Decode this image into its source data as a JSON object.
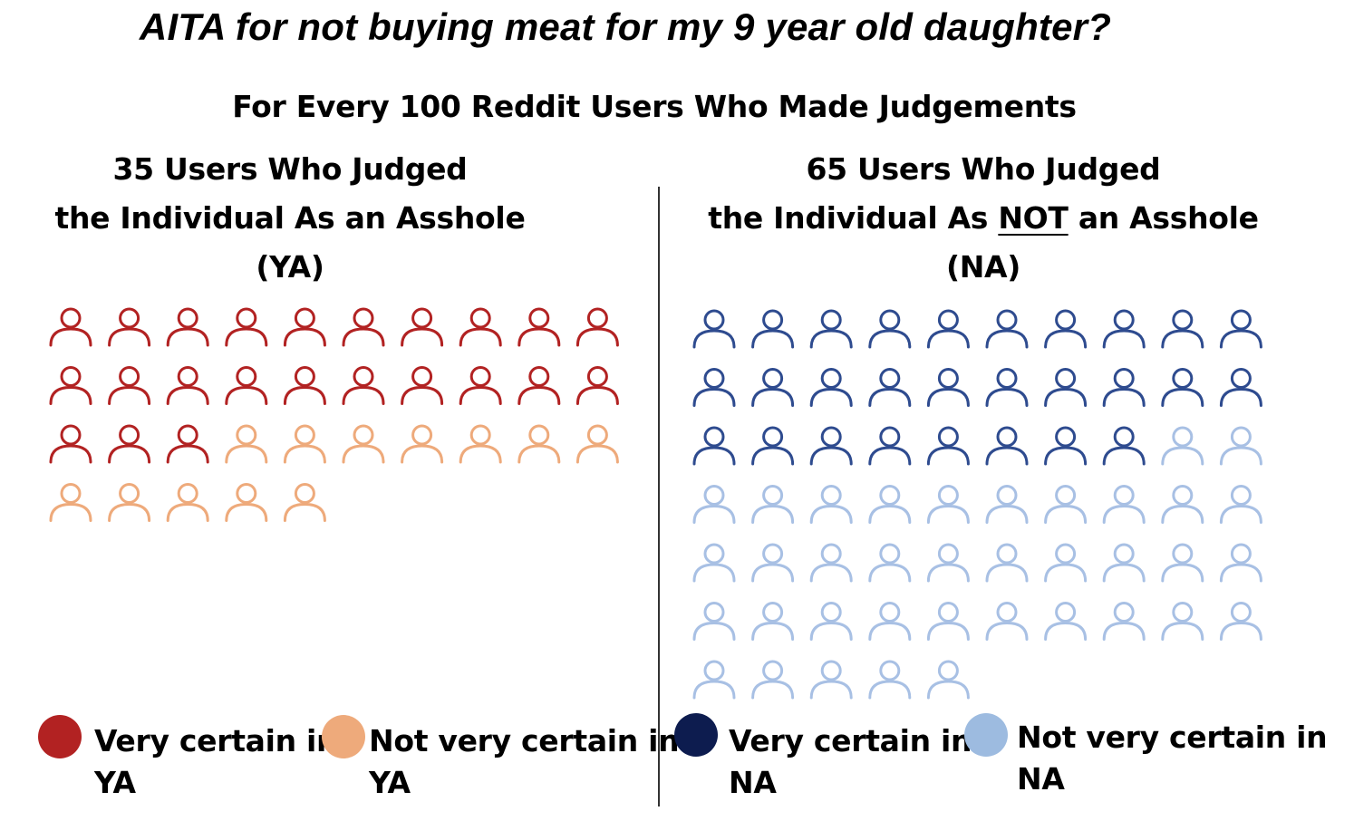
{
  "title": "AITA for not buying meat for my 9 year old daughter?",
  "subtitle": "For Every 100 Reddit Users Who Made Judgements",
  "panels": {
    "ya": {
      "line1": "35 Users Who Judged",
      "line2": "the Individual As an Asshole",
      "line3": "(YA)"
    },
    "na": {
      "line1": "65 Users Who Judged",
      "line2_pre": "the Individual As ",
      "line2_u": "NOT",
      "line2_post": " an Asshole",
      "line3": "(NA)"
    }
  },
  "legend": [
    {
      "text1": "Very certain in",
      "text2": "YA",
      "color": "#b22222"
    },
    {
      "text1": "Not very certain in",
      "text2": "YA",
      "color": "#eeaa7b"
    },
    {
      "text1": "Very certain in",
      "text2": "NA",
      "color": "#0d1c4f"
    },
    {
      "text1": "Not very certain in",
      "text2": "NA",
      "color": "#9dbbe0"
    }
  ],
  "chart_data": {
    "type": "waffle",
    "title": "AITA for not buying meat for my 9 year old daughter?",
    "subtitle": "For Every 100 Reddit Users Who Made Judgements",
    "icons_per_row": 10,
    "groups": [
      {
        "name": "YA",
        "total": 35,
        "series": [
          {
            "name": "Very certain in YA",
            "value": 23,
            "color": "#b22222"
          },
          {
            "name": "Not very certain in YA",
            "value": 12,
            "color": "#eeaa7b"
          }
        ]
      },
      {
        "name": "NA",
        "total": 65,
        "series": [
          {
            "name": "Very certain in NA",
            "value": 28,
            "color": "#2e4b8f"
          },
          {
            "name": "Not very certain in NA",
            "value": 37,
            "color": "#a8c0e4"
          }
        ]
      }
    ]
  }
}
